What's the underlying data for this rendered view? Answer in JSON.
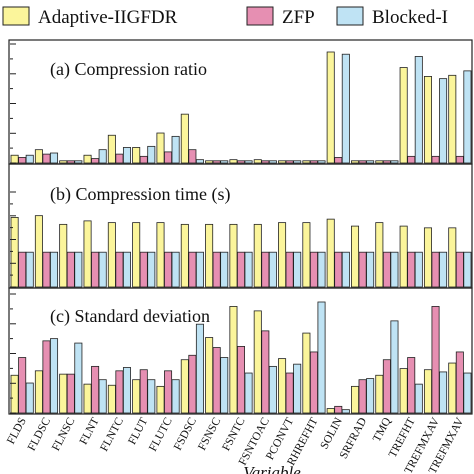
{
  "legend": [
    {
      "label": "Adaptive-IIGFDR",
      "color": "#fbf59b"
    },
    {
      "label": "ZFP",
      "color": "#e68fb2"
    },
    {
      "label": "Blocked-I",
      "color": "#bfe3f4"
    }
  ],
  "chart_data": [
    {
      "type": "bar",
      "title": "(a) Compression ratio",
      "categories": [
        "FLDS",
        "FLDSC",
        "FLNSC",
        "FLNT",
        "FLNTC",
        "FLUT",
        "FLUTC",
        "FSDSC",
        "FSNSC",
        "FSNTC",
        "FSNTOAC",
        "PCONVT",
        "RHREFHT",
        "SOLIN",
        "SRFRAD",
        "TMQ",
        "TREFHT",
        "TREFMXAV",
        "TREFMXAV"
      ],
      "series": [
        {
          "name": "Adaptive-IIGFDR",
          "values": [
            0.07,
            0.12,
            0.02,
            0.07,
            0.25,
            0.14,
            0.27,
            0.44,
            0.02,
            0.03,
            0.03,
            0.02,
            0.02,
            1.0,
            0.02,
            0.02,
            0.86,
            0.78,
            0.79
          ]
        },
        {
          "name": "ZFP",
          "values": [
            0.05,
            0.08,
            0.02,
            0.04,
            0.08,
            0.06,
            0.1,
            0.12,
            0.02,
            0.02,
            0.02,
            0.02,
            0.02,
            0.05,
            0.02,
            0.02,
            0.06,
            0.06,
            0.06
          ]
        },
        {
          "name": "Blocked-I",
          "values": [
            0.07,
            0.09,
            0.02,
            0.12,
            0.14,
            0.15,
            0.24,
            0.03,
            0.02,
            0.02,
            0.02,
            0.02,
            0.02,
            0.98,
            0.02,
            0.02,
            0.96,
            0.76,
            0.83
          ]
        }
      ]
    },
    {
      "type": "bar",
      "title": "(b) Compression time (s)",
      "categories": [
        "FLDS",
        "FLDSC",
        "FLNSC",
        "FLNT",
        "FLNTC",
        "FLUT",
        "FLUTC",
        "FSDSC",
        "FSNSC",
        "FSNTC",
        "FSNTOAC",
        "PCONVT",
        "RHREFHT",
        "SOLIN",
        "SRFRAD",
        "TMQ",
        "TREFHT",
        "TREFMXAV",
        "TREFMXAV"
      ],
      "series": [
        {
          "name": "Adaptive-IIGFDR",
          "values": [
            0.8,
            0.82,
            0.72,
            0.76,
            0.74,
            0.74,
            0.74,
            0.72,
            0.72,
            0.72,
            0.72,
            0.74,
            0.74,
            0.78,
            0.7,
            0.74,
            0.7,
            0.68,
            0.68
          ]
        },
        {
          "name": "ZFP",
          "values": [
            0.4,
            0.4,
            0.4,
            0.4,
            0.4,
            0.4,
            0.4,
            0.4,
            0.4,
            0.4,
            0.4,
            0.4,
            0.4,
            0.4,
            0.4,
            0.4,
            0.4,
            0.4,
            0.4
          ]
        },
        {
          "name": "Blocked-I",
          "values": [
            0.4,
            0.4,
            0.4,
            0.4,
            0.4,
            0.4,
            0.4,
            0.4,
            0.4,
            0.4,
            0.4,
            0.4,
            0.4,
            0.4,
            0.4,
            0.4,
            0.4,
            0.4,
            0.4
          ]
        }
      ]
    },
    {
      "type": "bar",
      "title": "(c) Standard deviation",
      "categories": [
        "FLDS",
        "FLDSC",
        "FLNSC",
        "FLNT",
        "FLNTC",
        "FLUT",
        "FLUTC",
        "FSDSC",
        "FSNSC",
        "FSNTC",
        "FSNTOAC",
        "PCONVT",
        "RHREFHT",
        "SOLIN",
        "SRFRAD",
        "TMQ",
        "TREFHT",
        "TREFMXAV",
        "TREFMXAV"
      ],
      "series": [
        {
          "name": "Adaptive-IIGFDR",
          "values": [
            0.34,
            0.38,
            0.35,
            0.26,
            0.25,
            0.3,
            0.24,
            0.48,
            0.68,
            0.96,
            0.92,
            0.49,
            0.72,
            0.04,
            0.24,
            0.34,
            0.4,
            0.39,
            0.45
          ]
        },
        {
          "name": "ZFP",
          "values": [
            0.5,
            0.65,
            0.35,
            0.42,
            0.38,
            0.39,
            0.38,
            0.52,
            0.59,
            0.6,
            0.74,
            0.36,
            0.55,
            0.06,
            0.3,
            0.48,
            0.5,
            0.96,
            0.55
          ]
        },
        {
          "name": "Blocked-I",
          "values": [
            0.27,
            0.67,
            0.63,
            0.3,
            0.41,
            0.3,
            0.3,
            0.8,
            0.5,
            0.36,
            0.42,
            0.44,
            1.0,
            0.03,
            0.31,
            0.83,
            0.26,
            0.37,
            0.36
          ]
        }
      ]
    }
  ],
  "xlabel": "Variable"
}
